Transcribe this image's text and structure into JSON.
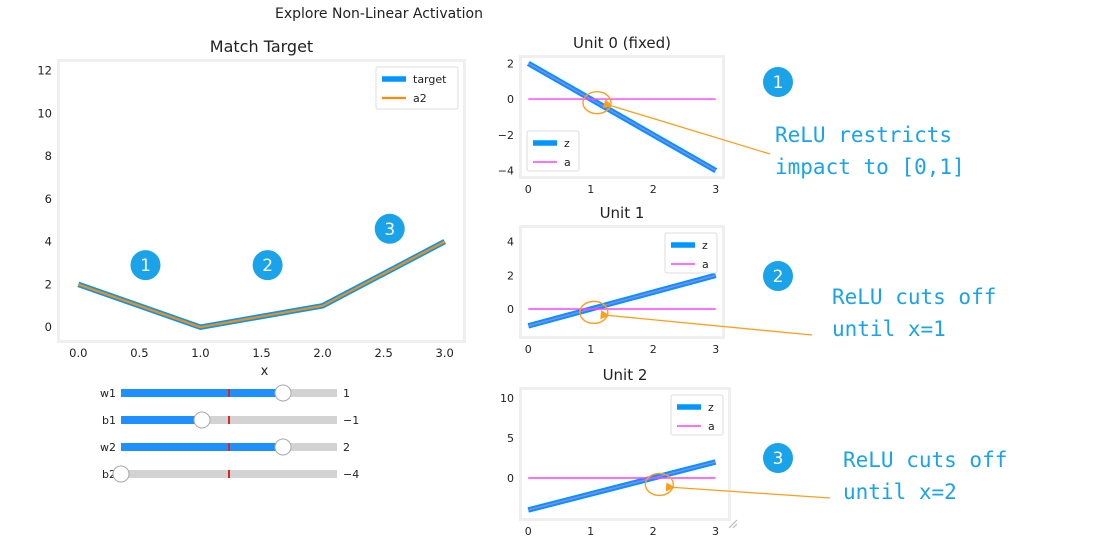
{
  "page_title": "Explore Non-Linear Activation",
  "colors": {
    "z": "#0096ff",
    "target": "#0096ff",
    "a2": "#ff8c00",
    "a": "#ff40ff",
    "badge": "#1aa3e8",
    "annotation_text": "#1aa3e8",
    "arrow": "#ff9e1b",
    "slider_fill": "#1e90ff",
    "slider_track": "#d3d3d3",
    "init_marker": "#d62728"
  },
  "chart_data": [
    {
      "id": "main",
      "type": "line",
      "title": "Match Target",
      "xlabel": "x",
      "ylabel": "",
      "xlim": [
        -0.15,
        3.15
      ],
      "ylim": [
        -0.6,
        12.4
      ],
      "xticks": [
        0.0,
        0.5,
        1.0,
        1.5,
        2.0,
        2.5,
        3.0
      ],
      "xtick_labels": [
        "0.0",
        "0.5",
        "1.0",
        "1.5",
        "2.0",
        "2.5",
        "3.0"
      ],
      "yticks": [
        0,
        2,
        4,
        6,
        8,
        10,
        12
      ],
      "ytick_labels": [
        "0",
        "2",
        "4",
        "6",
        "8",
        "10",
        "12"
      ],
      "grid": true,
      "legend": "top-right",
      "series": [
        {
          "name": "target",
          "x": [
            0,
            1,
            2,
            3
          ],
          "y": [
            2,
            0,
            1,
            4
          ]
        },
        {
          "name": "a2",
          "x": [
            0,
            1,
            2,
            3
          ],
          "y": [
            2,
            0,
            1,
            4
          ]
        }
      ],
      "badges": [
        {
          "label": "1",
          "x": 0.55,
          "y": 2.9
        },
        {
          "label": "2",
          "x": 1.55,
          "y": 2.9
        },
        {
          "label": "3",
          "x": 2.55,
          "y": 4.6
        }
      ]
    },
    {
      "id": "unit0",
      "type": "line",
      "title": "Unit 0 (fixed)",
      "xlim": [
        -0.1,
        3.1
      ],
      "ylim": [
        -4.3,
        2.3
      ],
      "xticks": [
        0,
        1,
        2,
        3
      ],
      "xtick_labels": [
        "0",
        "1",
        "2",
        "3"
      ],
      "yticks": [
        -4,
        -2,
        0,
        2
      ],
      "ytick_labels": [
        "−4",
        "−2",
        "0",
        "2"
      ],
      "grid": true,
      "legend": "bottom-left",
      "series": [
        {
          "name": "z",
          "x": [
            0,
            3
          ],
          "y": [
            2,
            -4
          ]
        },
        {
          "name": "a",
          "x": [
            0,
            3
          ],
          "y": [
            0,
            0
          ]
        }
      ],
      "highlight": {
        "x": 1.1,
        "y": -0.2
      }
    },
    {
      "id": "unit1",
      "type": "line",
      "title": "Unit 1",
      "xlim": [
        -0.1,
        3.1
      ],
      "ylim": [
        -1.6,
        4.8
      ],
      "xticks": [
        0,
        1,
        2,
        3
      ],
      "xtick_labels": [
        "0",
        "1",
        "2",
        "3"
      ],
      "yticks": [
        0,
        2,
        4
      ],
      "ytick_labels": [
        "0",
        "2",
        "4"
      ],
      "grid": true,
      "legend": "top-right",
      "series": [
        {
          "name": "z",
          "x": [
            0,
            3
          ],
          "y": [
            -1,
            2
          ]
        },
        {
          "name": "a",
          "x": [
            0,
            3
          ],
          "y": [
            0,
            0
          ]
        }
      ],
      "highlight": {
        "x": 1.05,
        "y": -0.2
      }
    },
    {
      "id": "unit2",
      "type": "line",
      "title": "Unit 2",
      "xlim": [
        -0.1,
        3.2
      ],
      "ylim": [
        -5.0,
        11.0
      ],
      "xticks": [
        0,
        1,
        2,
        3
      ],
      "xtick_labels": [
        "0",
        "1",
        "2",
        "3"
      ],
      "yticks": [
        0,
        5,
        10
      ],
      "ytick_labels": [
        "0",
        "5",
        "10"
      ],
      "grid": true,
      "legend": "top-right",
      "series": [
        {
          "name": "z",
          "x": [
            0,
            3
          ],
          "y": [
            -4,
            2
          ]
        },
        {
          "name": "a",
          "x": [
            0,
            3
          ],
          "y": [
            0,
            0
          ]
        }
      ],
      "highlight": {
        "x": 2.1,
        "y": -0.8
      }
    }
  ],
  "sliders": [
    {
      "name": "w1",
      "value": 1,
      "value_text": "1",
      "min": -2,
      "max": 2,
      "initial": 0
    },
    {
      "name": "b1",
      "value": -1,
      "value_text": "−1",
      "min": -4,
      "max": 4,
      "initial": 0
    },
    {
      "name": "w2",
      "value": 2,
      "value_text": "2",
      "min": -4,
      "max": 4,
      "initial": 0
    },
    {
      "name": "b2",
      "value": -4,
      "value_text": "−4",
      "min": -4,
      "max": 4,
      "initial": 0
    }
  ],
  "annotations": [
    {
      "badge": "1",
      "lines": [
        "ReLU restricts",
        "impact to [0,1]"
      ]
    },
    {
      "badge": "2",
      "lines": [
        "ReLU cuts off",
        "until x=1"
      ]
    },
    {
      "badge": "3",
      "lines": [
        "ReLU cuts off",
        "until x=2"
      ]
    }
  ]
}
